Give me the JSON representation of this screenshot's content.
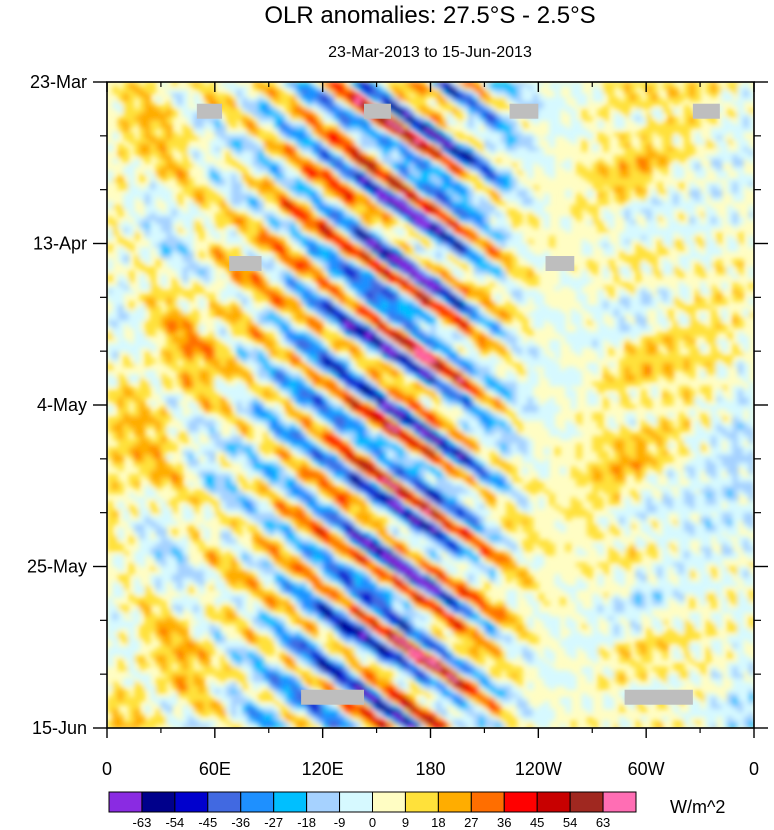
{
  "chart_data": {
    "type": "heatmap",
    "title": "OLR anomalies: 27.5°S - 2.5°S",
    "subtitle": "23-Mar-2013 to 15-Jun-2013",
    "x_tick_labels": [
      "0",
      "60E",
      "120E",
      "180",
      "120W",
      "60W",
      "0"
    ],
    "x_tick_values_deg_east": [
      0,
      60,
      120,
      180,
      240,
      300,
      360
    ],
    "xlim_deg_east": [
      0,
      360
    ],
    "y_tick_labels": [
      "23-Mar",
      "13-Apr",
      "4-May",
      "25-May",
      "15-Jun"
    ],
    "y_tick_days_since_start": [
      0,
      21,
      42,
      63,
      84
    ],
    "ylim_days_since_start": [
      0,
      84
    ],
    "y_direction": "time increases downward",
    "colorbar": {
      "units": "W/m^2",
      "levels": [
        "-63",
        "-54",
        "-45",
        "-36",
        "-27",
        "-18",
        "-9",
        "0",
        "9",
        "18",
        "27",
        "36",
        "45",
        "54",
        "63"
      ],
      "colors": [
        "#8a2be2",
        "#00008b",
        "#0000cd",
        "#4169e1",
        "#1e90ff",
        "#00bfff",
        "#a6d2ff",
        "#d6f9ff",
        "#fffdc3",
        "#ffe13a",
        "#ffad00",
        "#ff6e00",
        "#ff0000",
        "#c80000",
        "#a02820",
        "#ff6eb4"
      ]
    },
    "missing_color": "#bebebe",
    "description_of_field": "Eastward-propagating negative (blue) anomaly bands from ~60E to ~160W; positive (orange) bands interleaved; weak anomalies over the eastern Pacific"
  }
}
